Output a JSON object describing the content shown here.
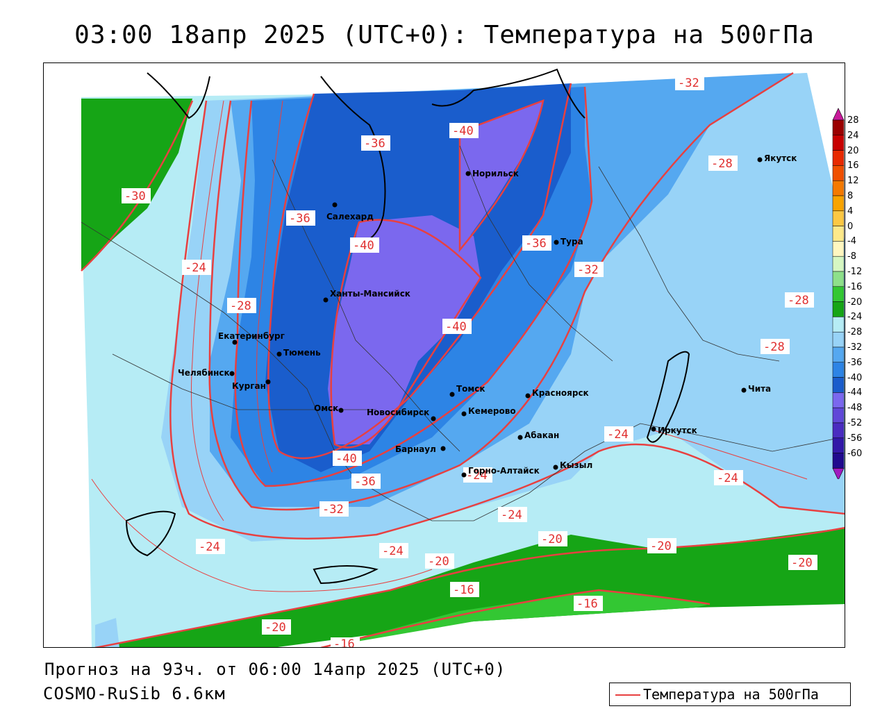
{
  "title": "03:00 18апр 2025 (UTC+0): Температура на 500гПа",
  "forecast": "Прогноз на 93ч. от 06:00 14апр 2025 (UTC+0)",
  "model": "COSMO-RuSib 6.6км",
  "legend_label": "Температура на 500гПа",
  "colorbar_ticks": [
    "28",
    "24",
    "20",
    "16",
    "12",
    "8",
    "4",
    "0",
    "-4",
    "-8",
    "-12",
    "-16",
    "-20",
    "-24",
    "-28",
    "-32",
    "-36",
    "-40",
    "-44",
    "-48",
    "-52",
    "-56",
    "-60"
  ],
  "colorbar_colors": [
    "#9b0000",
    "#c80000",
    "#e82a00",
    "#f05000",
    "#f47a00",
    "#f8a400",
    "#fcc844",
    "#fde98a",
    "#fff7c0",
    "#d6f7c2",
    "#8ee08a",
    "#33c733",
    "#16a516",
    "#b6ecf5",
    "#98d3f7",
    "#55a8f0",
    "#2d84e5",
    "#1a5dcc",
    "#7b68ee",
    "#6048d8",
    "#4a2cc0",
    "#3218a8",
    "#200a8e"
  ],
  "isotherm_labels": [
    "-32",
    "-28",
    "-40",
    "-36",
    "-30",
    "-36",
    "-24",
    "-28",
    "-36",
    "-32",
    "-40",
    "-40",
    "-28",
    "-28",
    "-24",
    "-40",
    "-36",
    "-32",
    "-24",
    "-24",
    "-20",
    "-24",
    "-20",
    "-20",
    "-20",
    "-16",
    "-16",
    "-20",
    "-16",
    "-24",
    "-24"
  ],
  "cities": [
    "Норильск",
    "Якутск",
    "Салехард",
    "Тура",
    "Ханты-Мансийск",
    "Екатеринбург",
    "Тюмень",
    "Челябинск",
    "Курган",
    "Омск",
    "Новосибирск",
    "Томск",
    "Красноярск",
    "Кемерово",
    "Барнаул",
    "Абакан",
    "Горно-Алтайск",
    "Кызыл",
    "Иркутск",
    "Чита"
  ],
  "colors": {
    "isotherm": "#e84040",
    "green_dark": "#16a516",
    "green_light": "#33c733",
    "cyan": "#b6ecf5",
    "lightblue": "#98d3f7",
    "midblue": "#55a8f0",
    "blue": "#2d84e5",
    "darkblue": "#1a5dcc",
    "purple": "#7b68ee"
  }
}
